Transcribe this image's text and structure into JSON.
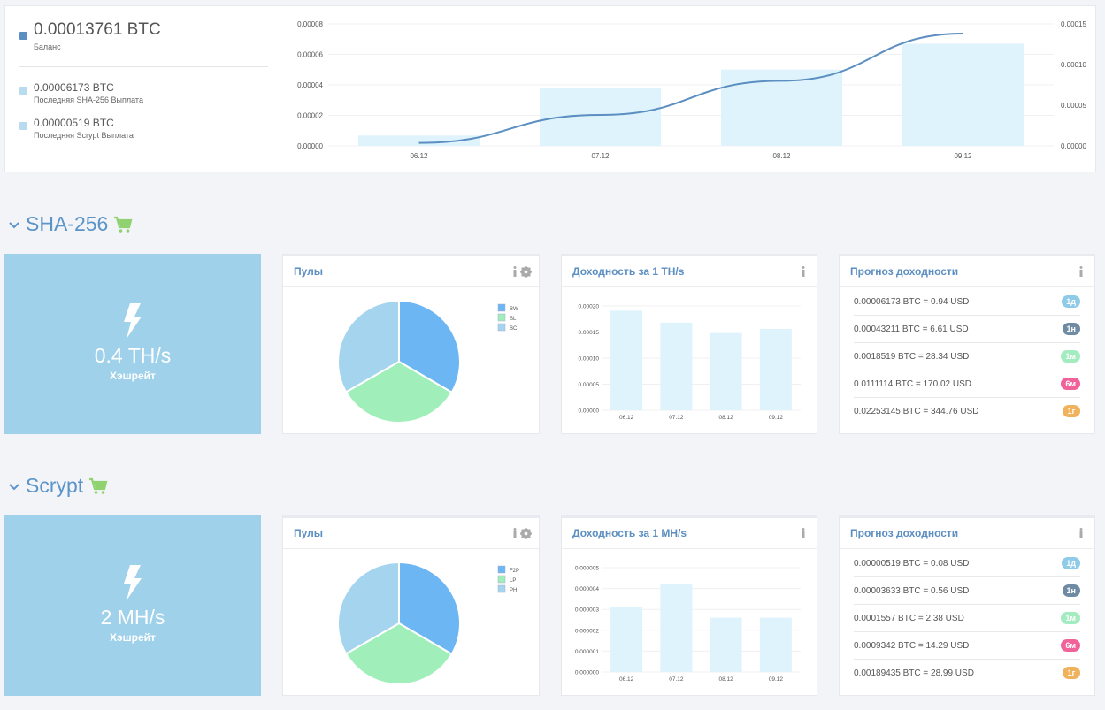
{
  "balance": {
    "value": "0.00013761 BTC",
    "label": "Баланс",
    "color": "#5b8ec1",
    "payouts": [
      {
        "value": "0.00006173 BTC",
        "label": "Последняя SHA-256 Выплата",
        "color": "#b9dbef"
      },
      {
        "value": "0.00000519 BTC",
        "label": "Последняя Scrypt Выплата",
        "color": "#b9dbef"
      }
    ]
  },
  "sections": [
    {
      "title": "SHA-256",
      "hashrate": {
        "value": "0.4 TH/s",
        "label": "Хэшрейт"
      },
      "pools_title": "Пулы",
      "yield_title": "Доходность за 1 TH/s",
      "forecast_title": "Прогноз доходности",
      "forecast": [
        {
          "text": "0.00006173 BTC = 0.94 USD",
          "badge": "1д",
          "color": "#8dcbe8"
        },
        {
          "text": "0.00043211 BTC = 6.61 USD",
          "badge": "1н",
          "color": "#6f8aa3"
        },
        {
          "text": "0.0018519 BTC = 28.34 USD",
          "badge": "1м",
          "color": "#a3ecc0"
        },
        {
          "text": "0.0111114 BTC = 170.02 USD",
          "badge": "6м",
          "color": "#f0629a"
        },
        {
          "text": "0.02253145 BTC = 344.76 USD",
          "badge": "1г",
          "color": "#f0b25c"
        }
      ]
    },
    {
      "title": "Scrypt",
      "hashrate": {
        "value": "2 MH/s",
        "label": "Хэшрейт"
      },
      "pools_title": "Пулы",
      "yield_title": "Доходность за 1 MH/s",
      "forecast_title": "Прогноз доходности",
      "forecast": [
        {
          "text": "0.00000519 BTC = 0.08 USD",
          "badge": "1д",
          "color": "#8dcbe8"
        },
        {
          "text": "0.00003633 BTC = 0.56 USD",
          "badge": "1н",
          "color": "#6f8aa3"
        },
        {
          "text": "0.0001557 BTC = 2.38 USD",
          "badge": "1м",
          "color": "#a3ecc0"
        },
        {
          "text": "0.0009342 BTC = 14.29 USD",
          "badge": "6м",
          "color": "#f0629a"
        },
        {
          "text": "0.00189435 BTC = 28.99 USD",
          "badge": "1г",
          "color": "#f0b25c"
        }
      ]
    }
  ],
  "chart_data": [
    {
      "type": "bar",
      "categories": [
        "06.12",
        "07.12",
        "08.12",
        "09.12"
      ],
      "series": [
        {
          "values": [
            6.8e-06,
            3.8e-05,
            5e-05,
            6.7e-05
          ],
          "axis": "left",
          "kind": "bar",
          "color": "#def3fc"
        },
        {
          "values": [
            3.7e-06,
            3.8e-05,
            8e-05,
            0.000138
          ],
          "axis": "right",
          "kind": "line",
          "color": "#5b8ec1"
        }
      ],
      "yticks_left": [
        "0.00008",
        "0.00006",
        "0.00004",
        "0.00002",
        "0.00000"
      ],
      "yticks_right": [
        "0.00015",
        "0.00010",
        "0.00005",
        "0.00000"
      ],
      "ylim_left": [
        0,
        8e-05
      ],
      "ylim_right": [
        0,
        0.00015
      ]
    },
    {
      "type": "pie",
      "labels": [
        "BW",
        "SL",
        "BC"
      ],
      "values": [
        33.4,
        33.3,
        33.3
      ],
      "colors": [
        "#6cb6f3",
        "#a0efba",
        "#a4d4ee"
      ],
      "legend": "top-right"
    },
    {
      "type": "bar",
      "categories": [
        "06.12",
        "07.12",
        "08.12",
        "09.12"
      ],
      "values": [
        0.000191,
        0.000168,
        0.000148,
        0.000156
      ],
      "yticks": [
        "0.00020",
        "0.00015",
        "0.00010",
        "0.00005",
        "0.00000"
      ],
      "ylim": [
        0,
        0.0002
      ],
      "color": "#def3fc"
    },
    {
      "type": "pie",
      "labels": [
        "F2P",
        "LP",
        "PH"
      ],
      "values": [
        33.4,
        33.3,
        33.3
      ],
      "colors": [
        "#6cb6f3",
        "#a0efba",
        "#a4d4ee"
      ],
      "legend": "top-right"
    },
    {
      "type": "bar",
      "categories": [
        "06.12",
        "07.12",
        "08.12",
        "09.12"
      ],
      "values": [
        3.1e-06,
        4.2e-06,
        2.6e-06,
        2.6e-06
      ],
      "yticks": [
        "0.000005",
        "0.000004",
        "0.000003",
        "0.000002",
        "0.000001",
        "0.000000"
      ],
      "ylim": [
        0,
        5e-06
      ],
      "color": "#def3fc"
    }
  ]
}
